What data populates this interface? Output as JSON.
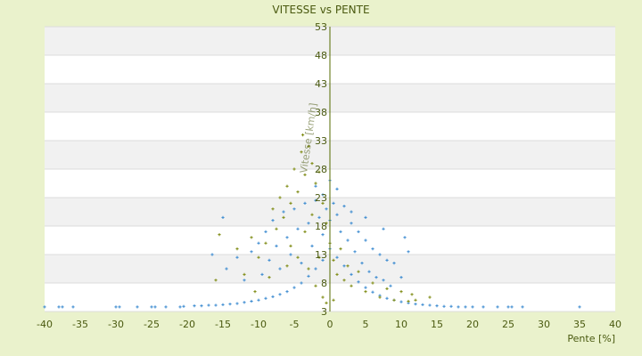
{
  "chart_data": {
    "type": "scatter",
    "title": "VITESSE vs PENTE",
    "xlabel": "Pente [%]",
    "ylabel": "Vitesse [km/h]",
    "xlim": [
      -40,
      40
    ],
    "ylim": [
      3,
      53
    ],
    "xticks": [
      -40,
      -35,
      -30,
      -25,
      -20,
      -15,
      -10,
      -5,
      0,
      5,
      10,
      15,
      20,
      25,
      30,
      35,
      40
    ],
    "yticks": [
      3,
      8,
      13,
      18,
      23,
      28,
      33,
      38,
      43,
      48,
      53
    ],
    "grid": "alternating horizontal bands",
    "legend": "none",
    "colors": {
      "page_background": "#eaf2cc",
      "plot_band_light": "#ffffff",
      "plot_band_dark": "#f1f1f1",
      "grid_line": "#dcdcdc",
      "zero_axis": "#556b00",
      "text": "#4a5a10",
      "series_blue": "#3a8ad0",
      "series_olive": "#7d8a10"
    },
    "series": [
      {
        "color": "#3a8ad0",
        "marker": "plus",
        "points": [
          [
            -40.0,
            3.8
          ],
          [
            -38.0,
            3.8
          ],
          [
            -37.5,
            3.8
          ],
          [
            -36.0,
            3.8
          ],
          [
            -30.0,
            3.8
          ],
          [
            -29.5,
            3.8
          ],
          [
            -27.0,
            3.8
          ],
          [
            -25.0,
            3.8
          ],
          [
            -24.5,
            3.8
          ],
          [
            -23.0,
            3.8
          ],
          [
            -21.0,
            3.8
          ],
          [
            -20.5,
            3.9
          ],
          [
            -19.0,
            4.0
          ],
          [
            -18.0,
            4.0
          ],
          [
            -17.0,
            4.1
          ],
          [
            -16.0,
            4.1
          ],
          [
            -15.0,
            4.2
          ],
          [
            -14.0,
            4.3
          ],
          [
            -13.0,
            4.4
          ],
          [
            -12.0,
            4.6
          ],
          [
            -11.0,
            4.8
          ],
          [
            -10.0,
            5.0
          ],
          [
            -9.0,
            5.3
          ],
          [
            -8.0,
            5.6
          ],
          [
            -7.0,
            6.0
          ],
          [
            -6.0,
            6.5
          ],
          [
            -5.0,
            7.2
          ],
          [
            -4.0,
            8.0
          ],
          [
            -3.0,
            9.2
          ],
          [
            -2.0,
            10.5
          ],
          [
            -1.0,
            12.0
          ],
          [
            0.0,
            14.0
          ],
          [
            1.0,
            12.5
          ],
          [
            2.0,
            11.0
          ],
          [
            3.0,
            9.5
          ],
          [
            4.0,
            8.2
          ],
          [
            5.0,
            7.2
          ],
          [
            6.0,
            6.4
          ],
          [
            7.0,
            5.8
          ],
          [
            8.0,
            5.3
          ],
          [
            9.0,
            5.0
          ],
          [
            10.0,
            4.7
          ],
          [
            11.0,
            4.5
          ],
          [
            12.0,
            4.3
          ],
          [
            13.0,
            4.2
          ],
          [
            14.0,
            4.1
          ],
          [
            15.0,
            4.0
          ],
          [
            16.0,
            3.9
          ],
          [
            17.0,
            3.9
          ],
          [
            18.0,
            3.8
          ],
          [
            19.0,
            3.8
          ],
          [
            20.0,
            3.8
          ],
          [
            21.5,
            3.8
          ],
          [
            23.5,
            3.8
          ],
          [
            25.0,
            3.8
          ],
          [
            25.5,
            3.8
          ],
          [
            27.0,
            3.8
          ],
          [
            35.0,
            3.8
          ],
          [
            -15.0,
            19.5
          ],
          [
            -16.5,
            13.0
          ],
          [
            -14.5,
            10.5
          ],
          [
            -13.0,
            12.5
          ],
          [
            -12.0,
            8.5
          ],
          [
            -11.0,
            13.5
          ],
          [
            -10.0,
            15.0
          ],
          [
            -9.5,
            9.5
          ],
          [
            -9.0,
            17.0
          ],
          [
            -8.5,
            12.0
          ],
          [
            -8.0,
            19.0
          ],
          [
            -7.5,
            14.5
          ],
          [
            -7.0,
            10.5
          ],
          [
            -6.5,
            20.5
          ],
          [
            -6.0,
            16.0
          ],
          [
            -5.5,
            13.0
          ],
          [
            -5.0,
            21.0
          ],
          [
            -4.5,
            17.5
          ],
          [
            -4.0,
            11.5
          ],
          [
            -3.5,
            22.0
          ],
          [
            -3.0,
            18.5
          ],
          [
            -2.5,
            14.5
          ],
          [
            -2.0,
            22.5
          ],
          [
            -1.5,
            19.5
          ],
          [
            -1.0,
            16.5
          ],
          [
            -0.5,
            21.0
          ],
          [
            0.0,
            19.0
          ],
          [
            0.5,
            22.0
          ],
          [
            1.0,
            20.0
          ],
          [
            1.5,
            17.0
          ],
          [
            2.0,
            21.5
          ],
          [
            2.5,
            15.5
          ],
          [
            3.0,
            18.5
          ],
          [
            3.5,
            13.5
          ],
          [
            4.0,
            17.0
          ],
          [
            4.5,
            11.5
          ],
          [
            5.0,
            15.5
          ],
          [
            5.5,
            10.0
          ],
          [
            6.0,
            14.0
          ],
          [
            6.5,
            9.0
          ],
          [
            7.0,
            13.0
          ],
          [
            7.5,
            8.5
          ],
          [
            8.0,
            12.0
          ],
          [
            8.5,
            7.5
          ],
          [
            9.0,
            11.5
          ],
          [
            10.0,
            9.0
          ],
          [
            10.5,
            16.0
          ],
          [
            11.0,
            13.5
          ],
          [
            7.5,
            17.5
          ],
          [
            5.0,
            19.5
          ],
          [
            3.0,
            20.5
          ],
          [
            -1.0,
            23.5
          ],
          [
            0.0,
            26.0
          ],
          [
            -2.0,
            25.0
          ],
          [
            1.0,
            24.5
          ]
        ]
      },
      {
        "color": "#7d8a10",
        "marker": "plus",
        "points": [
          [
            -16.0,
            8.5
          ],
          [
            -15.5,
            16.5
          ],
          [
            -13.0,
            14.0
          ],
          [
            -12.0,
            9.5
          ],
          [
            -11.0,
            16.0
          ],
          [
            -10.0,
            12.5
          ],
          [
            -9.0,
            15.0
          ],
          [
            -8.0,
            21.0
          ],
          [
            -7.5,
            17.5
          ],
          [
            -7.0,
            23.0
          ],
          [
            -6.5,
            19.5
          ],
          [
            -6.0,
            25.0
          ],
          [
            -5.5,
            22.0
          ],
          [
            -5.0,
            28.0
          ],
          [
            -4.5,
            24.0
          ],
          [
            -4.0,
            31.0
          ],
          [
            -3.8,
            34.0
          ],
          [
            -3.5,
            27.0
          ],
          [
            -3.0,
            32.0
          ],
          [
            -2.5,
            29.0
          ],
          [
            -2.0,
            25.5
          ],
          [
            -1.5,
            27.5
          ],
          [
            -1.0,
            22.0
          ],
          [
            -0.5,
            18.5
          ],
          [
            0.0,
            15.0
          ],
          [
            0.5,
            12.0
          ],
          [
            1.0,
            9.5
          ],
          [
            1.5,
            14.0
          ],
          [
            2.0,
            8.5
          ],
          [
            2.5,
            11.0
          ],
          [
            3.0,
            7.5
          ],
          [
            4.0,
            10.0
          ],
          [
            5.0,
            6.5
          ],
          [
            6.0,
            8.0
          ],
          [
            7.0,
            5.5
          ],
          [
            8.0,
            7.0
          ],
          [
            9.0,
            5.0
          ],
          [
            10.0,
            6.5
          ],
          [
            11.0,
            4.8
          ],
          [
            11.5,
            6.0
          ],
          [
            12.0,
            5.0
          ],
          [
            14.0,
            5.5
          ],
          [
            -3.0,
            10.5
          ],
          [
            -2.0,
            7.5
          ],
          [
            -1.0,
            5.5
          ],
          [
            -4.5,
            12.5
          ],
          [
            -6.0,
            11.0
          ],
          [
            -8.5,
            9.0
          ],
          [
            -10.5,
            6.5
          ],
          [
            -2.5,
            20.0
          ],
          [
            -3.5,
            17.0
          ],
          [
            -5.5,
            14.5
          ],
          [
            -1.5,
            12.5
          ],
          [
            0.5,
            5.0
          ],
          [
            -0.5,
            4.5
          ]
        ]
      }
    ]
  }
}
